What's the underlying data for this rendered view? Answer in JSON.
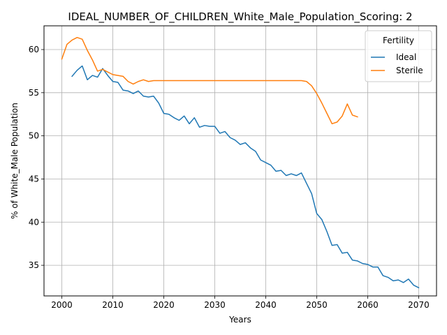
{
  "chart_data": {
    "type": "line",
    "title": "IDEAL_NUMBER_OF_CHILDREN_White_Male_Population_Scoring: 2",
    "xlabel": "Years",
    "ylabel": "% of White_Male Population",
    "xlim": [
      1996.5,
      2073.5
    ],
    "ylim": [
      31.45,
      62.75
    ],
    "xticks": [
      2000,
      2010,
      2020,
      2030,
      2040,
      2050,
      2060,
      2070
    ],
    "yticks": [
      35,
      40,
      45,
      50,
      55,
      60
    ],
    "grid": true,
    "legend": {
      "title": "Fertility",
      "placement": "top-right"
    },
    "series": [
      {
        "name": "Ideal",
        "color": "#1f77b4",
        "x": [
          2002,
          2003,
          2004,
          2005,
          2006,
          2007,
          2008,
          2009,
          2010,
          2011,
          2012,
          2013,
          2014,
          2015,
          2016,
          2017,
          2018,
          2019,
          2020,
          2021,
          2022,
          2023,
          2024,
          2025,
          2026,
          2027,
          2028,
          2029,
          2030,
          2031,
          2032,
          2033,
          2034,
          2035,
          2036,
          2037,
          2038,
          2039,
          2040,
          2041,
          2042,
          2043,
          2044,
          2045,
          2046,
          2047,
          2048,
          2049,
          2050,
          2051,
          2052,
          2053,
          2054,
          2055,
          2056,
          2057,
          2058,
          2059,
          2060,
          2061,
          2062,
          2063,
          2064,
          2065,
          2066,
          2067,
          2068,
          2069,
          2070
        ],
        "y": [
          56.9,
          57.6,
          58.1,
          56.5,
          57.0,
          56.8,
          57.8,
          57.0,
          56.3,
          56.2,
          55.3,
          55.2,
          54.9,
          55.2,
          54.6,
          54.5,
          54.6,
          53.8,
          52.6,
          52.5,
          52.1,
          51.8,
          52.3,
          51.4,
          52.1,
          51.0,
          51.2,
          51.1,
          51.1,
          50.3,
          50.5,
          49.8,
          49.5,
          49.0,
          49.2,
          48.6,
          48.2,
          47.2,
          46.9,
          46.6,
          45.9,
          46.0,
          45.4,
          45.6,
          45.4,
          45.7,
          44.5,
          43.3,
          41.0,
          40.3,
          38.9,
          37.3,
          37.4,
          36.4,
          36.5,
          35.6,
          35.5,
          35.2,
          35.1,
          34.8,
          34.8,
          33.8,
          33.6,
          33.2,
          33.3,
          33.0,
          33.4,
          32.7,
          32.4
        ]
      },
      {
        "name": "Sterile",
        "color": "#ff7f0e",
        "x": [
          2000,
          2001,
          2002,
          2003,
          2004,
          2005,
          2006,
          2007,
          2008,
          2009,
          2010,
          2011,
          2012,
          2013,
          2014,
          2015,
          2016,
          2017,
          2018,
          2019,
          2020,
          2021,
          2022,
          2023,
          2024,
          2025,
          2026,
          2027,
          2028,
          2029,
          2030,
          2031,
          2032,
          2033,
          2034,
          2035,
          2036,
          2037,
          2038,
          2039,
          2040,
          2041,
          2042,
          2043,
          2044,
          2045,
          2046,
          2047,
          2048,
          2049,
          2050,
          2051,
          2052,
          2053,
          2054,
          2055,
          2056,
          2057,
          2058
        ],
        "y": [
          58.9,
          60.6,
          61.1,
          61.4,
          61.2,
          59.9,
          58.8,
          57.5,
          57.7,
          57.4,
          57.1,
          57.0,
          56.9,
          56.3,
          56.0,
          56.3,
          56.5,
          56.3,
          56.4,
          56.4,
          56.4,
          56.4,
          56.4,
          56.4,
          56.4,
          56.4,
          56.4,
          56.4,
          56.4,
          56.4,
          56.4,
          56.4,
          56.4,
          56.4,
          56.4,
          56.4,
          56.4,
          56.4,
          56.4,
          56.4,
          56.4,
          56.4,
          56.4,
          56.4,
          56.4,
          56.4,
          56.4,
          56.4,
          56.3,
          55.8,
          54.9,
          53.8,
          52.6,
          51.4,
          51.6,
          52.3,
          53.7,
          52.4,
          52.2
        ]
      }
    ]
  }
}
